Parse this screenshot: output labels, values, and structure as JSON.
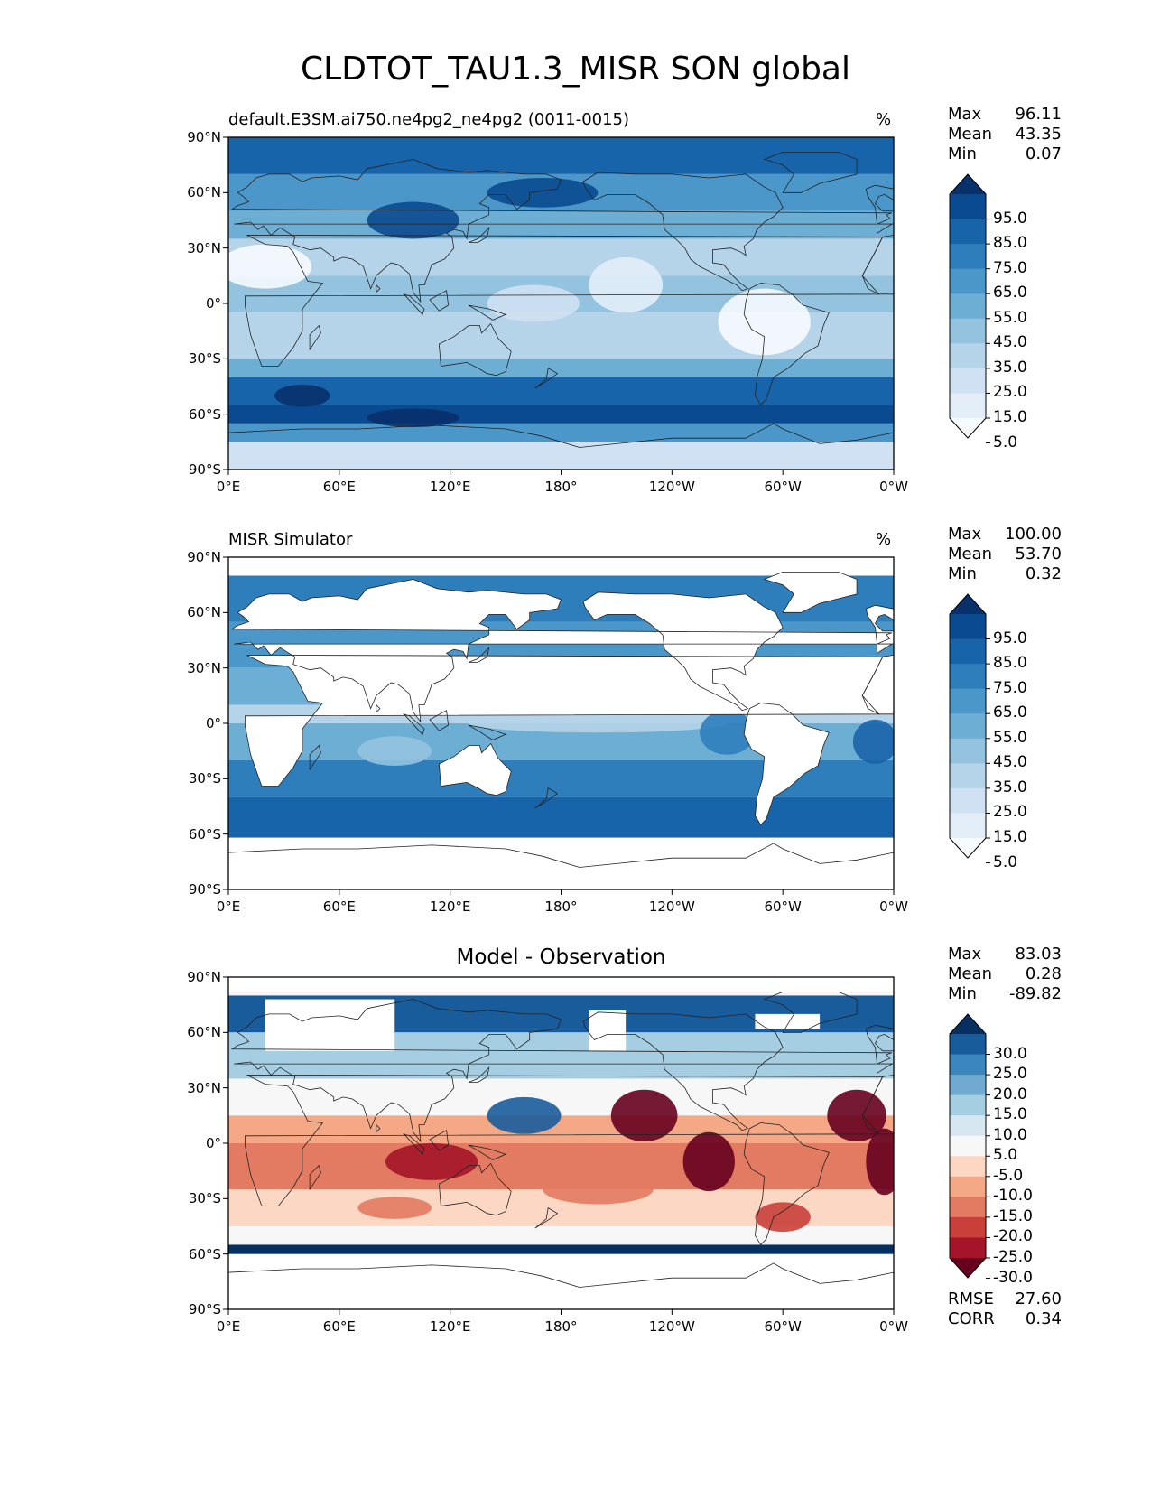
{
  "title": "CLDTOT_TAU1.3_MISR SON global",
  "lat_ticks": [
    "90°N",
    "60°N",
    "30°N",
    "0°",
    "30°S",
    "60°S",
    "90°S"
  ],
  "lon_ticks": [
    "0°E",
    "60°E",
    "120°E",
    "180°",
    "120°W",
    "60°W",
    "0°W"
  ],
  "panels": [
    {
      "id": "model",
      "title_left": "default.E3SM.ai750.ne4pg2_ne4pg2 (0011-0015)",
      "title_center": "",
      "units": "%",
      "stats": [
        {
          "k": "Max",
          "v": "96.11"
        },
        {
          "k": "Mean",
          "v": "43.35"
        },
        {
          "k": "Min",
          "v": "0.07"
        }
      ],
      "colorbar_labels": [
        "95.0",
        "85.0",
        "75.0",
        "65.0",
        "55.0",
        "45.0",
        "35.0",
        "25.0",
        "15.0",
        "5.0"
      ],
      "colors": [
        "#f7fbff",
        "#e3eef9",
        "#cfe1f2",
        "#b5d4e9",
        "#93c3df",
        "#6daed5",
        "#4b97c9",
        "#2f7ebc",
        "#1864aa",
        "#0a4a90",
        "#08306b"
      ]
    },
    {
      "id": "obs",
      "title_left": "MISR Simulator",
      "title_center": "",
      "units": "%",
      "stats": [
        {
          "k": "Max",
          "v": "100.00"
        },
        {
          "k": "Mean",
          "v": "53.70"
        },
        {
          "k": "Min",
          "v": "0.32"
        }
      ],
      "colorbar_labels": [
        "95.0",
        "85.0",
        "75.0",
        "65.0",
        "55.0",
        "45.0",
        "35.0",
        "25.0",
        "15.0",
        "5.0"
      ],
      "colors": [
        "#f7fbff",
        "#e3eef9",
        "#cfe1f2",
        "#b5d4e9",
        "#93c3df",
        "#6daed5",
        "#4b97c9",
        "#2f7ebc",
        "#1864aa",
        "#0a4a90",
        "#08306b"
      ]
    },
    {
      "id": "diff",
      "title_left": "",
      "title_center": "Model - Observation",
      "units": "",
      "stats": [
        {
          "k": "Max",
          "v": "83.03"
        },
        {
          "k": "Mean",
          "v": "0.28"
        },
        {
          "k": "Min",
          "v": "-89.82"
        }
      ],
      "colorbar_labels": [
        "30.0",
        "25.0",
        "20.0",
        "15.0",
        "10.0",
        "5.0",
        "-5.0",
        "-10.0",
        "-15.0",
        "-20.0",
        "-25.0",
        "-30.0"
      ],
      "colors": [
        "#67001f",
        "#a51429",
        "#c9403a",
        "#e27b62",
        "#f4a886",
        "#fbd7c4",
        "#f7f7f7",
        "#d6e7f1",
        "#a6cee3",
        "#6fabd0",
        "#3b87bd",
        "#185c9c",
        "#053061"
      ],
      "bottom_stats": [
        {
          "k": "RMSE",
          "v": "27.60"
        },
        {
          "k": "CORR",
          "v": "0.34"
        }
      ]
    }
  ]
}
